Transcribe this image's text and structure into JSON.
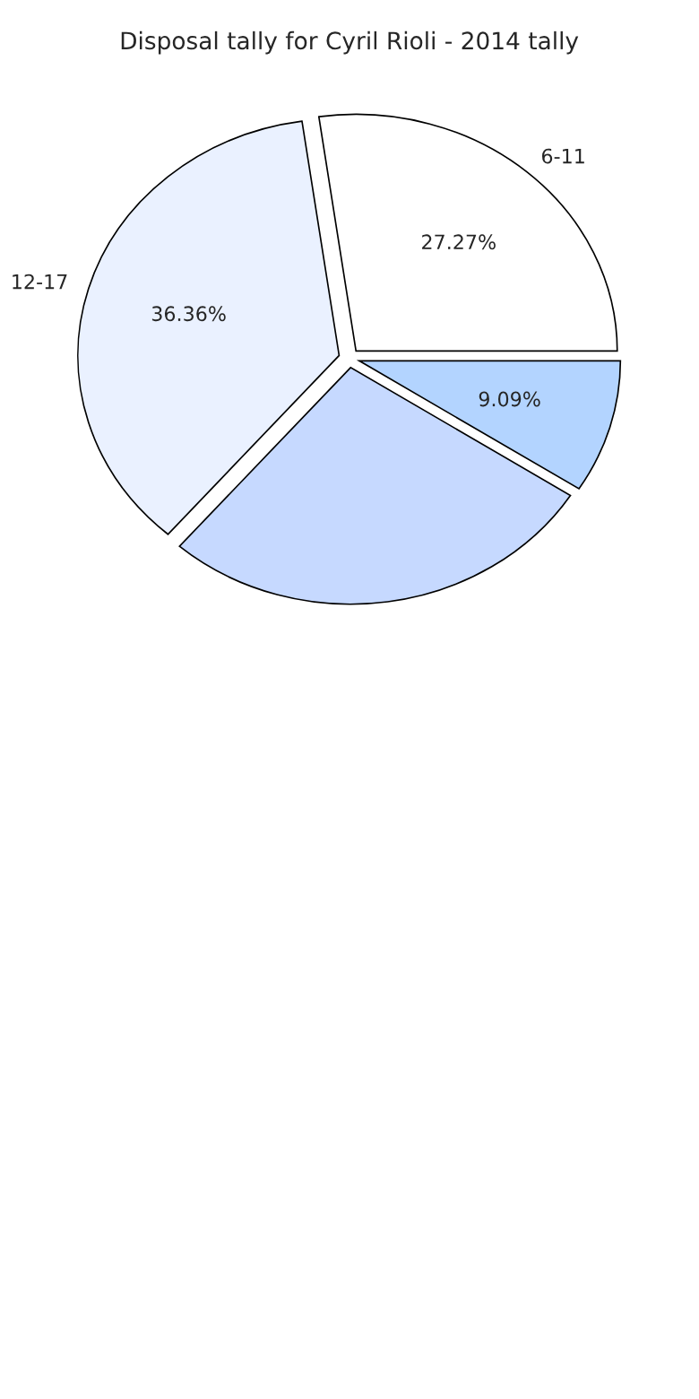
{
  "chart_data": {
    "type": "pie",
    "title": "Disposal tally for Cyril Rioli - 2014 tally",
    "categories": [
      "6-11",
      "12-17",
      null,
      null
    ],
    "values": [
      27.27,
      36.36,
      27.28,
      9.09
    ],
    "value_labels": [
      "27.27%",
      "36.36%",
      null,
      "9.09%"
    ],
    "colors": [
      "#ffffff",
      "#eaf1ff",
      "#c6d9ff",
      "#b3d4ff"
    ]
  }
}
